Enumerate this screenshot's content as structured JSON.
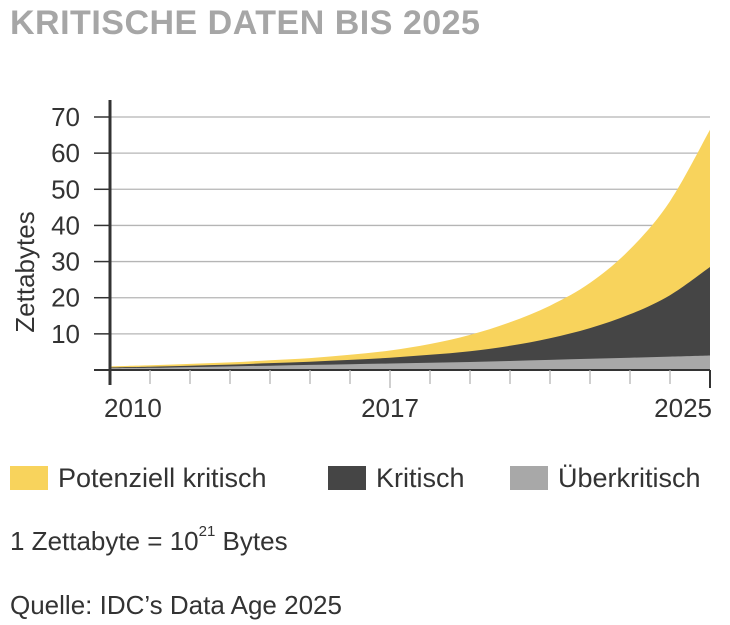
{
  "title": "KRITISCHE DATEN BIS 2025",
  "colors": {
    "potenziell": "#f8d35c",
    "kritisch": "#454545",
    "ueberkritisch": "#a8a8a8",
    "grid": "#b5b5b5",
    "axis": "#333333",
    "title": "#a6a6a6"
  },
  "legend": [
    {
      "label": "Potenziell kritisch",
      "color": "#f8d35c"
    },
    {
      "label": "Kritisch",
      "color": "#454545"
    },
    {
      "label": "Überkritisch",
      "color": "#a8a8a8"
    }
  ],
  "note": {
    "prefix": "1 Zettabyte = 10",
    "exponent": "21",
    "suffix": " Bytes"
  },
  "source": "Quelle: IDC’s Data Age 2025",
  "chart_data": {
    "type": "area",
    "stacked": true,
    "x": [
      2010,
      2011,
      2012,
      2013,
      2014,
      2015,
      2016,
      2017,
      2018,
      2019,
      2020,
      2021,
      2022,
      2023,
      2024,
      2025
    ],
    "series": [
      {
        "name": "Überkritisch",
        "values": [
          0.5,
          0.6,
          0.8,
          1.0,
          1.2,
          1.4,
          1.6,
          1.8,
          2.0,
          2.2,
          2.5,
          2.8,
          3.1,
          3.4,
          3.7,
          4.0
        ]
      },
      {
        "name": "Kritisch",
        "values": [
          0.2,
          0.3,
          0.4,
          0.5,
          0.7,
          0.9,
          1.2,
          1.6,
          2.2,
          3.0,
          4.2,
          6.0,
          8.5,
          12.0,
          17.0,
          24.5
        ]
      },
      {
        "name": "Potenziell kritisch",
        "values": [
          0.3,
          0.4,
          0.5,
          0.6,
          0.8,
          1.0,
          1.4,
          2.0,
          3.0,
          4.5,
          6.5,
          9.0,
          12.5,
          18.0,
          26.0,
          38.0
        ]
      }
    ],
    "ylabel": "Zettabytes",
    "xlabel": "",
    "ylim": [
      0,
      70
    ],
    "xlim": [
      2010,
      2025
    ],
    "yticks": [
      10,
      20,
      30,
      40,
      50,
      60,
      70
    ],
    "xtick_labels": [
      "2010",
      "2017",
      "2025"
    ],
    "grid": true
  }
}
